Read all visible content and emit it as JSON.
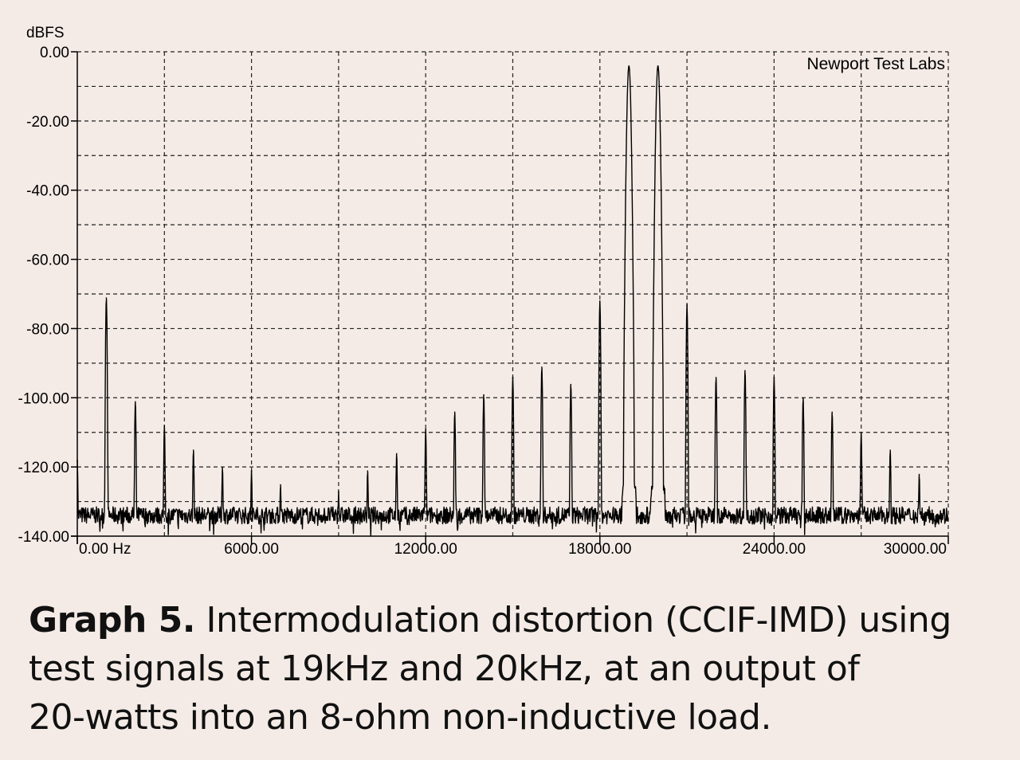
{
  "chart_data": {
    "type": "line",
    "title": "",
    "xlabel": "",
    "ylabel": "dBFS",
    "watermark": "Newport Test Labs",
    "xlim": [
      0,
      30000
    ],
    "ylim": [
      -140,
      0
    ],
    "x_ticks": [
      {
        "value": 0,
        "label": "0.00 Hz"
      },
      {
        "value": 6000,
        "label": "6000.00"
      },
      {
        "value": 12000,
        "label": "12000.00"
      },
      {
        "value": 18000,
        "label": "18000.00"
      },
      {
        "value": 24000,
        "label": "24000.00"
      },
      {
        "value": 30000,
        "label": "30000.00"
      }
    ],
    "y_ticks": [
      {
        "value": 0,
        "label": "0.00"
      },
      {
        "value": -20,
        "label": "-20.00"
      },
      {
        "value": -40,
        "label": "-40.00"
      },
      {
        "value": -60,
        "label": "-60.00"
      },
      {
        "value": -80,
        "label": "-80.00"
      },
      {
        "value": -100,
        "label": "-100.00"
      },
      {
        "value": -120,
        "label": "-120.00"
      },
      {
        "value": -140,
        "label": "-140.00"
      }
    ],
    "grid": true,
    "grid_style": "dashed",
    "x_gridlines": [
      3000,
      6000,
      9000,
      12000,
      15000,
      18000,
      21000,
      24000,
      27000
    ],
    "y_gridlines": [
      -10,
      -20,
      -30,
      -40,
      -50,
      -60,
      -70,
      -80,
      -90,
      -100,
      -110,
      -120,
      -130
    ],
    "noise_floor_db": -134,
    "series": [
      {
        "color": "#000000",
        "peaks": [
          {
            "x": 0,
            "y": -118
          },
          {
            "x": 1000,
            "y": -71
          },
          {
            "x": 2000,
            "y": -101
          },
          {
            "x": 3000,
            "y": -108
          },
          {
            "x": 4000,
            "y": -115
          },
          {
            "x": 5000,
            "y": -120
          },
          {
            "x": 6000,
            "y": -121
          },
          {
            "x": 7000,
            "y": -125
          },
          {
            "x": 9000,
            "y": -127
          },
          {
            "x": 10000,
            "y": -121
          },
          {
            "x": 11000,
            "y": -116
          },
          {
            "x": 12000,
            "y": -109
          },
          {
            "x": 13000,
            "y": -104
          },
          {
            "x": 14000,
            "y": -99
          },
          {
            "x": 15000,
            "y": -94
          },
          {
            "x": 16000,
            "y": -91
          },
          {
            "x": 17000,
            "y": -96
          },
          {
            "x": 18000,
            "y": -72
          },
          {
            "x": 19000,
            "y": -4
          },
          {
            "x": 20000,
            "y": -4
          },
          {
            "x": 21000,
            "y": -73
          },
          {
            "x": 22000,
            "y": -94
          },
          {
            "x": 23000,
            "y": -92
          },
          {
            "x": 24000,
            "y": -94
          },
          {
            "x": 25000,
            "y": -100
          },
          {
            "x": 26000,
            "y": -104
          },
          {
            "x": 27000,
            "y": -110
          },
          {
            "x": 28000,
            "y": -115
          },
          {
            "x": 29000,
            "y": -122
          }
        ]
      }
    ]
  },
  "caption": {
    "bold": "Graph 5.",
    "line1": "Intermodulation distortion (CCIF-IMD) using",
    "line2": "test signals at 19kHz and 20kHz, at an output of",
    "line3": "20-watts into an 8-ohm non-inductive load."
  }
}
